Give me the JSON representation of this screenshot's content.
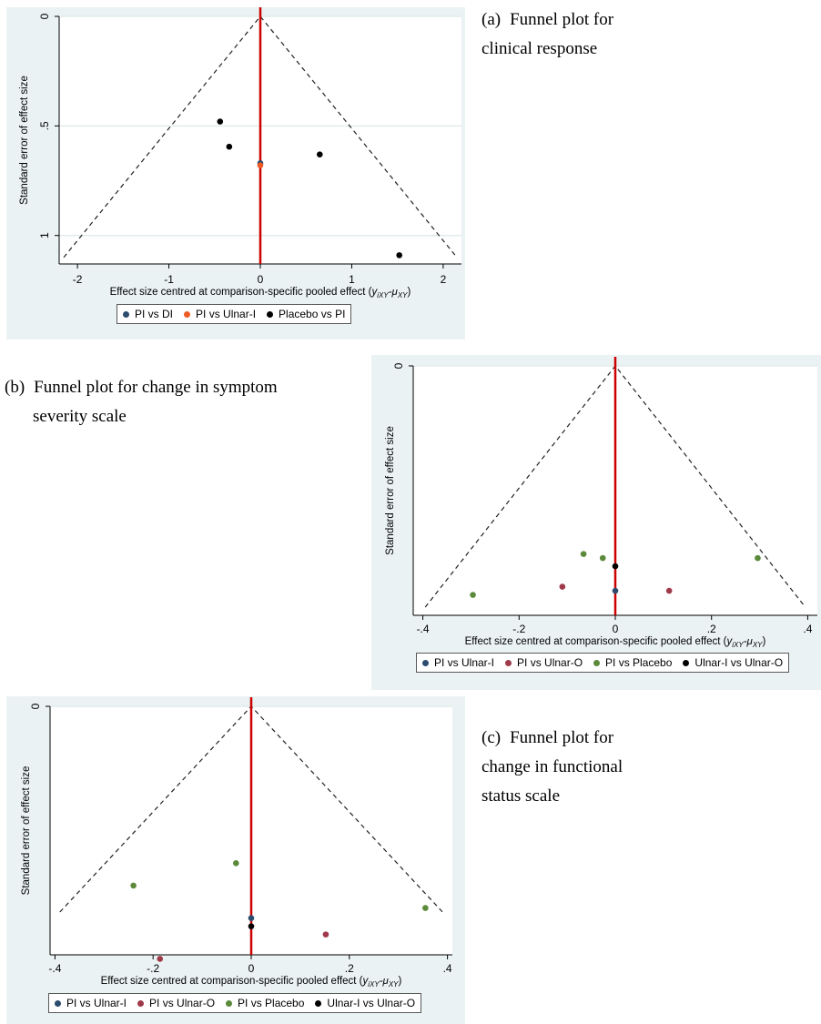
{
  "captions": {
    "a": {
      "label": "(a)",
      "line1": "Funnel plot for",
      "line2": "clinical response"
    },
    "b": {
      "label": "(b)",
      "line1": "Funnel plot for change in symptom",
      "line2": "severity scale"
    },
    "c": {
      "label": "(c)",
      "line1": "Funnel plot for",
      "line2": "change in functional",
      "line3": "status scale"
    }
  },
  "colors": {
    "navy": "#2c4c6e",
    "orange": "#ee5a24",
    "black": "#000000",
    "maroon": "#9e3a4a",
    "green": "#5b8a3a",
    "refline": "#cc0000",
    "panel_bg": "#eaf2f3"
  },
  "chart_data": [
    {
      "id": "a",
      "type": "scatter",
      "title": "",
      "xlabel_prefix": "Effect size centred at comparison-specific pooled effect (",
      "xlabel_math": "y",
      "xlabel_sub1": "iXY",
      "xlabel_mid": "-μ",
      "xlabel_sub2": "XY",
      "xlabel_suffix": ")",
      "ylabel": "Standard error of effect size",
      "xlim": [
        -2.2,
        2.2
      ],
      "ylim": [
        1.13,
        0
      ],
      "y_reversed": true,
      "xticks": [
        -2,
        -1,
        0,
        1,
        2
      ],
      "xtick_labels": [
        "-2",
        "-1",
        "0",
        "1",
        "2"
      ],
      "yticks": [
        0,
        0.5,
        1
      ],
      "ytick_labels": [
        "0",
        ".5",
        "1"
      ],
      "funnel": {
        "apex": [
          0,
          0
        ],
        "left": [
          -2.15,
          1.1
        ],
        "right": [
          2.15,
          1.1
        ]
      },
      "reference_x": 0,
      "series": [
        {
          "name": "PI vs DI",
          "color": "#2c4c6e",
          "points": [
            [
              0,
              0.67
            ]
          ]
        },
        {
          "name": "PI vs Ulnar-I",
          "color": "#ee5a24",
          "points": [
            [
              0,
              0.68
            ]
          ]
        },
        {
          "name": "Placebo vs PI",
          "color": "#000000",
          "points": [
            [
              -0.44,
              0.48
            ],
            [
              -0.34,
              0.595
            ],
            [
              0.65,
              0.63
            ],
            [
              1.52,
              1.09
            ]
          ]
        }
      ]
    },
    {
      "id": "b",
      "type": "scatter",
      "title": "",
      "xlabel_prefix": "Effect size centred at comparison-specific pooled effect (",
      "xlabel_math": "y",
      "xlabel_sub1": "iXY",
      "xlabel_mid": "-μ",
      "xlabel_sub2": "XY",
      "xlabel_suffix": ")",
      "ylabel": "Standard error of effect size",
      "xlim": [
        -0.42,
        0.42
      ],
      "ylim": [
        0.122,
        0
      ],
      "y_reversed": true,
      "xticks": [
        -0.4,
        -0.2,
        0,
        0.2,
        0.4
      ],
      "xtick_labels": [
        "-.4",
        "-.2",
        "0",
        ".2",
        ".4"
      ],
      "yticks": [
        0
      ],
      "ytick_labels": [
        "0"
      ],
      "funnel": {
        "apex": [
          0,
          0
        ],
        "left": [
          -0.395,
          0.118
        ],
        "right": [
          0.395,
          0.118
        ]
      },
      "reference_x": 0,
      "series": [
        {
          "name": "PI vs Ulnar-I",
          "color": "#2c4c6e",
          "points": [
            [
              0,
              0.11
            ]
          ]
        },
        {
          "name": "PI vs Ulnar-O",
          "color": "#9e3a4a",
          "points": [
            [
              -0.11,
              0.108
            ],
            [
              0.112,
              0.11
            ]
          ]
        },
        {
          "name": "PI vs Placebo",
          "color": "#5b8a3a",
          "points": [
            [
              -0.296,
              0.112
            ],
            [
              -0.066,
              0.092
            ],
            [
              -0.026,
              0.094
            ],
            [
              0.296,
              0.094
            ]
          ]
        },
        {
          "name": "Ulnar-I vs Ulnar-O",
          "color": "#000000",
          "points": [
            [
              0,
              0.098
            ]
          ]
        }
      ]
    },
    {
      "id": "c",
      "type": "scatter",
      "title": "",
      "xlabel_prefix": "Effect size centred at comparison-specific pooled effect (",
      "xlabel_math": "y",
      "xlabel_sub1": "iXY",
      "xlabel_mid": "-μ",
      "xlabel_sub2": "XY",
      "xlabel_suffix": ")",
      "ylabel": "Standard error of effect size",
      "xlim": [
        -0.41,
        0.41
      ],
      "ylim": [
        0.122,
        0
      ],
      "y_reversed": true,
      "xticks": [
        -0.4,
        -0.2,
        0,
        0.2,
        0.4
      ],
      "xtick_labels": [
        "-.4",
        "-.2",
        "0",
        ".2",
        ".4"
      ],
      "yticks": [
        0
      ],
      "ytick_labels": [
        "0"
      ],
      "funnel": {
        "apex": [
          0,
          0
        ],
        "left": [
          -0.39,
          0.101
        ],
        "right": [
          0.39,
          0.101
        ]
      },
      "reference_x": 0,
      "series": [
        {
          "name": "PI vs Ulnar-I",
          "color": "#2c4c6e",
          "points": [
            [
              0,
              0.104
            ]
          ]
        },
        {
          "name": "PI vs Ulnar-O",
          "color": "#9e3a4a",
          "points": [
            [
              -0.186,
              0.124
            ],
            [
              0.152,
              0.112
            ]
          ]
        },
        {
          "name": "PI vs Placebo",
          "color": "#5b8a3a",
          "points": [
            [
              -0.24,
              0.088
            ],
            [
              -0.031,
              0.077
            ],
            [
              0.355,
              0.099
            ]
          ]
        },
        {
          "name": "Ulnar-I vs Ulnar-O",
          "color": "#000000",
          "points": [
            [
              0,
              0.108
            ]
          ]
        }
      ]
    }
  ]
}
